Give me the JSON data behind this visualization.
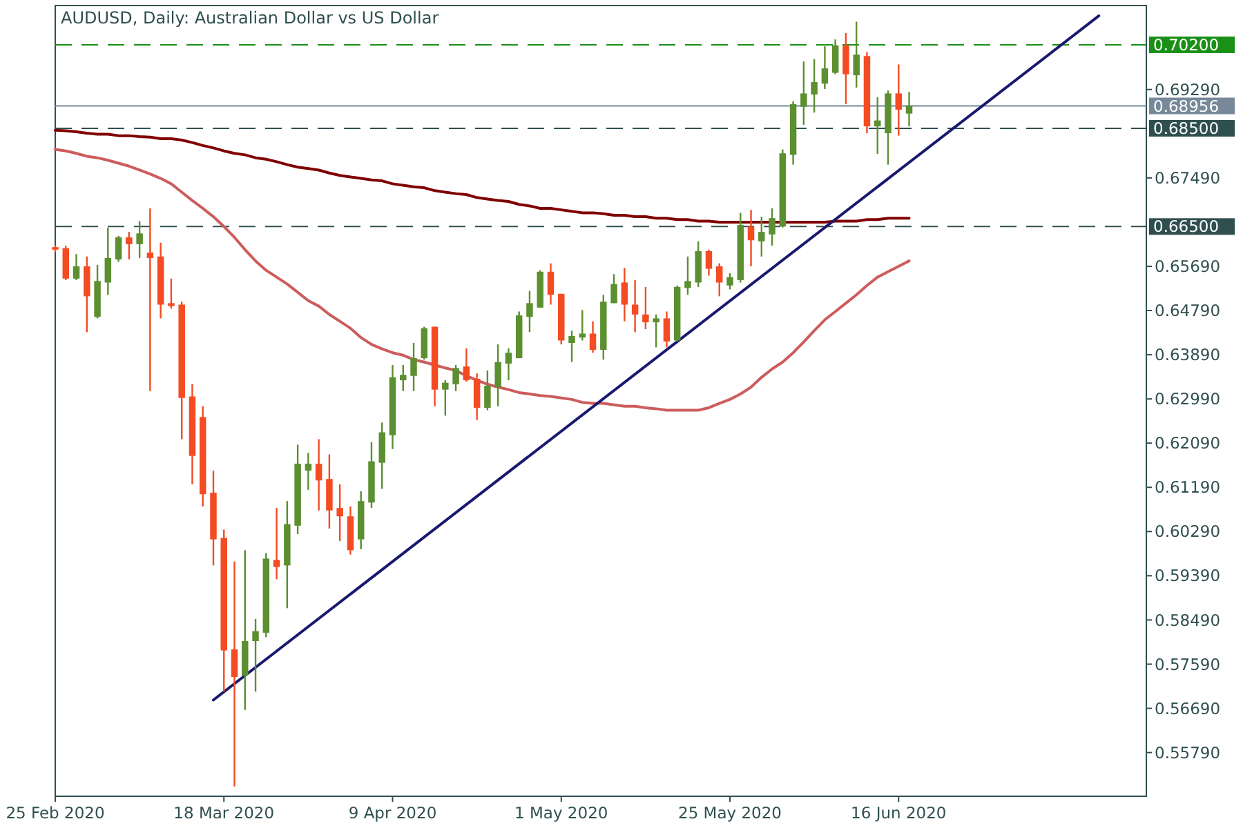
{
  "chart_data": {
    "type": "candlestick",
    "title": "AUDUSD, Daily:  Australian Dollar vs US Dollar",
    "categories": [
      "25 Feb 2020",
      null,
      null,
      null,
      null,
      null,
      null,
      null,
      null,
      null,
      null,
      null,
      null,
      null,
      null,
      null,
      "18 Mar 2020",
      null,
      null,
      null,
      null,
      null,
      null,
      null,
      null,
      null,
      null,
      null,
      null,
      null,
      null,
      null,
      "9 Apr 2020",
      null,
      null,
      null,
      null,
      null,
      null,
      null,
      null,
      null,
      null,
      null,
      null,
      null,
      null,
      null,
      "1 May 2020",
      null,
      null,
      null,
      null,
      null,
      null,
      null,
      null,
      null,
      null,
      null,
      null,
      null,
      null,
      null,
      "25 May 2020",
      null,
      null,
      null,
      null,
      null,
      null,
      null,
      null,
      null,
      null,
      null,
      null,
      null,
      null,
      null,
      "16 Jun 2020",
      null,
      null,
      null,
      null,
      null,
      null,
      null,
      null,
      null,
      null,
      null,
      null,
      null,
      null,
      null,
      null,
      null,
      null,
      null,
      null,
      null,
      null,
      null
    ],
    "ohlc": [
      [
        0.6608,
        0.6612,
        0.6598,
        0.6603
      ],
      [
        0.6606,
        0.6611,
        0.6541,
        0.6544
      ],
      [
        0.6544,
        0.6594,
        0.6541,
        0.6569
      ],
      [
        0.6569,
        0.6589,
        0.6435,
        0.6508
      ],
      [
        0.6466,
        0.6572,
        0.6463,
        0.6539
      ],
      [
        0.6536,
        0.6648,
        0.6511,
        0.6586
      ],
      [
        0.6583,
        0.6631,
        0.6578,
        0.6628
      ],
      [
        0.6628,
        0.6639,
        0.6583,
        0.6614
      ],
      [
        0.6614,
        0.6661,
        0.6586,
        0.6636
      ],
      [
        0.6597,
        0.6687,
        0.6315,
        0.6586
      ],
      [
        0.6589,
        0.6617,
        0.6463,
        0.6491
      ],
      [
        0.6494,
        0.6544,
        0.6483,
        0.6488
      ],
      [
        0.6491,
        0.6497,
        0.6217,
        0.6301
      ],
      [
        0.6304,
        0.6329,
        0.6125,
        0.6183
      ],
      [
        0.6262,
        0.6284,
        0.608,
        0.6105
      ],
      [
        0.6108,
        0.6153,
        0.596,
        0.6013
      ],
      [
        0.6016,
        0.6033,
        0.5703,
        0.5787
      ],
      [
        0.5789,
        0.5968,
        0.551,
        0.5733
      ],
      [
        0.5736,
        0.5991,
        0.5666,
        0.5806
      ],
      [
        0.5806,
        0.5851,
        0.5703,
        0.5826
      ],
      [
        0.5823,
        0.5985,
        0.5814,
        0.5974
      ],
      [
        0.5971,
        0.6077,
        0.5932,
        0.5957
      ],
      [
        0.596,
        0.6091,
        0.5873,
        0.6044
      ],
      [
        0.6041,
        0.6206,
        0.6024,
        0.6167
      ],
      [
        0.6153,
        0.6189,
        0.6114,
        0.6167
      ],
      [
        0.6167,
        0.6217,
        0.6072,
        0.6133
      ],
      [
        0.6136,
        0.6186,
        0.6035,
        0.6072
      ],
      [
        0.6077,
        0.6125,
        0.601,
        0.606
      ],
      [
        0.606,
        0.608,
        0.5982,
        0.5991
      ],
      [
        0.6013,
        0.6111,
        0.5993,
        0.6091
      ],
      [
        0.6088,
        0.6211,
        0.6077,
        0.6172
      ],
      [
        0.6169,
        0.6251,
        0.6116,
        0.6231
      ],
      [
        0.6225,
        0.6368,
        0.6197,
        0.6343
      ],
      [
        0.6337,
        0.6368,
        0.6315,
        0.6348
      ],
      [
        0.6346,
        0.6413,
        0.6315,
        0.6382
      ],
      [
        0.6382,
        0.6446,
        0.6379,
        0.6443
      ],
      [
        0.6446,
        0.6446,
        0.6284,
        0.6318
      ],
      [
        0.6318,
        0.6337,
        0.6265,
        0.6332
      ],
      [
        0.6329,
        0.6368,
        0.6315,
        0.6362
      ],
      [
        0.6365,
        0.6402,
        0.6334,
        0.6337
      ],
      [
        0.634,
        0.6351,
        0.6256,
        0.6281
      ],
      [
        0.6281,
        0.6357,
        0.6276,
        0.6326
      ],
      [
        0.6323,
        0.641,
        0.6284,
        0.6374
      ],
      [
        0.6371,
        0.6402,
        0.6337,
        0.6393
      ],
      [
        0.6382,
        0.6477,
        0.6382,
        0.6469
      ],
      [
        0.6466,
        0.6519,
        0.6435,
        0.6494
      ],
      [
        0.6485,
        0.6561,
        0.6485,
        0.6558
      ],
      [
        0.6558,
        0.6575,
        0.6491,
        0.6511
      ],
      [
        0.6513,
        0.6513,
        0.641,
        0.6418
      ],
      [
        0.6413,
        0.6438,
        0.6374,
        0.6427
      ],
      [
        0.6424,
        0.648,
        0.6418,
        0.6432
      ],
      [
        0.6432,
        0.6457,
        0.6393,
        0.6399
      ],
      [
        0.6399,
        0.6511,
        0.6379,
        0.6497
      ],
      [
        0.6494,
        0.6553,
        0.6494,
        0.6533
      ],
      [
        0.6536,
        0.6566,
        0.6457,
        0.6491
      ],
      [
        0.6491,
        0.6541,
        0.6435,
        0.6471
      ],
      [
        0.6471,
        0.6527,
        0.6441,
        0.6455
      ],
      [
        0.6455,
        0.6471,
        0.6404,
        0.6463
      ],
      [
        0.6463,
        0.6477,
        0.6404,
        0.6416
      ],
      [
        0.6418,
        0.653,
        0.6416,
        0.6527
      ],
      [
        0.6525,
        0.6589,
        0.6511,
        0.6539
      ],
      [
        0.6536,
        0.662,
        0.6527,
        0.66
      ],
      [
        0.66,
        0.6603,
        0.655,
        0.6564
      ],
      [
        0.6569,
        0.6575,
        0.6508,
        0.6536
      ],
      [
        0.653,
        0.6555,
        0.6522,
        0.6547
      ],
      [
        0.6541,
        0.6678,
        0.6536,
        0.6653
      ],
      [
        0.665,
        0.6684,
        0.6569,
        0.6622
      ],
      [
        0.662,
        0.667,
        0.6589,
        0.6639
      ],
      [
        0.6634,
        0.6687,
        0.6611,
        0.6667
      ],
      [
        0.665,
        0.6807,
        0.6648,
        0.6799
      ],
      [
        0.6796,
        0.6905,
        0.6776,
        0.6899
      ],
      [
        0.6894,
        0.6986,
        0.6857,
        0.6921
      ],
      [
        0.6919,
        0.6991,
        0.6882,
        0.6944
      ],
      [
        0.6941,
        0.7017,
        0.693,
        0.6972
      ],
      [
        0.6963,
        0.7031,
        0.696,
        0.7019
      ],
      [
        0.7019,
        0.7044,
        0.6899,
        0.696
      ],
      [
        0.6958,
        0.7067,
        0.6933,
        0.7
      ],
      [
        0.6997,
        0.7005,
        0.684,
        0.6854
      ],
      [
        0.6854,
        0.6913,
        0.6798,
        0.6866
      ],
      [
        0.684,
        0.6927,
        0.6776,
        0.6921
      ],
      [
        0.6921,
        0.698,
        0.6835,
        0.6888
      ],
      [
        0.688,
        0.6924,
        0.6854,
        0.6896
      ],
      null,
      null,
      null,
      null,
      null,
      null,
      null,
      null,
      null,
      null,
      null,
      null,
      null,
      null,
      null,
      null,
      null,
      null,
      null,
      null,
      null,
      null
    ],
    "series": [
      {
        "type": "line",
        "color": "#800000",
        "values": [
          0.6846,
          0.6845,
          0.6843,
          0.684,
          0.6838,
          0.6838,
          0.6835,
          0.6835,
          0.6833,
          0.6832,
          0.6829,
          0.6829,
          0.6826,
          0.6821,
          0.6815,
          0.681,
          0.6804,
          0.6799,
          0.6796,
          0.679,
          0.6787,
          0.6782,
          0.6776,
          0.6771,
          0.6768,
          0.6765,
          0.6759,
          0.6754,
          0.6751,
          0.6748,
          0.6745,
          0.6743,
          0.6737,
          0.6734,
          0.6731,
          0.6729,
          0.6723,
          0.672,
          0.6717,
          0.6715,
          0.6709,
          0.6706,
          0.6703,
          0.6701,
          0.6695,
          0.6692,
          0.6687,
          0.6687,
          0.6684,
          0.6681,
          0.6678,
          0.6678,
          0.6676,
          0.6673,
          0.6673,
          0.667,
          0.667,
          0.6667,
          0.6667,
          0.6664,
          0.6664,
          0.6661,
          0.6661,
          0.6659,
          0.6659,
          0.6659,
          0.6659,
          0.6659,
          0.6659,
          0.6659,
          0.6659,
          0.6659,
          0.6659,
          0.6659,
          0.6661,
          0.6661,
          0.6661,
          0.6664,
          0.6664,
          0.6667,
          0.6667,
          0.6667,
          null,
          null,
          null,
          null,
          null,
          null,
          null,
          null,
          null,
          null,
          null,
          null,
          null,
          null,
          null,
          null,
          null,
          null,
          null,
          null,
          null,
          null
        ]
      },
      {
        "type": "line",
        "color": "#cd5c5c",
        "values": [
          0.6807,
          0.6804,
          0.6799,
          0.6793,
          0.679,
          0.6785,
          0.6779,
          0.6773,
          0.6765,
          0.6757,
          0.6748,
          0.6737,
          0.672,
          0.6703,
          0.6687,
          0.667,
          0.665,
          0.6628,
          0.6603,
          0.658,
          0.6561,
          0.6547,
          0.6533,
          0.6516,
          0.6499,
          0.6488,
          0.6471,
          0.6457,
          0.6443,
          0.6424,
          0.641,
          0.6401,
          0.6393,
          0.6388,
          0.6379,
          0.6374,
          0.6368,
          0.6362,
          0.6357,
          0.6346,
          0.6337,
          0.6329,
          0.6323,
          0.6318,
          0.6312,
          0.6309,
          0.6306,
          0.6304,
          0.6301,
          0.6298,
          0.6292,
          0.629,
          0.629,
          0.6287,
          0.6284,
          0.6284,
          0.6281,
          0.6279,
          0.6276,
          0.6276,
          0.6276,
          0.6276,
          0.6281,
          0.629,
          0.6298,
          0.6309,
          0.6323,
          0.6343,
          0.636,
          0.6374,
          0.6393,
          0.6415,
          0.6438,
          0.646,
          0.6477,
          0.6494,
          0.6511,
          0.653,
          0.6547,
          0.6558,
          0.6569,
          0.658,
          null,
          null,
          null,
          null,
          null,
          null,
          null,
          null,
          null,
          null,
          null,
          null,
          null,
          null,
          null,
          null,
          null,
          null,
          null,
          null,
          null,
          null
        ]
      },
      {
        "type": "line",
        "color": "#191970",
        "values": [
          null,
          null,
          null,
          null,
          null,
          null,
          null,
          null,
          null,
          null,
          null,
          null,
          null,
          null,
          null,
          0.5686,
          null,
          null,
          null,
          null,
          null,
          null,
          null,
          null,
          null,
          null,
          null,
          null,
          null,
          null,
          null,
          null,
          null,
          null,
          null,
          null,
          null,
          null,
          null,
          null,
          null,
          null,
          null,
          null,
          null,
          null,
          null,
          null,
          null,
          null,
          null,
          null,
          null,
          null,
          null,
          null,
          null,
          null,
          null,
          null,
          null,
          null,
          null,
          null,
          null,
          null,
          null,
          null,
          null,
          null,
          null,
          null,
          null,
          null,
          null,
          null,
          null,
          null,
          null,
          null,
          null,
          null,
          null,
          null,
          null,
          null,
          null,
          null,
          null,
          null,
          null,
          null,
          null,
          null,
          null,
          null,
          null,
          null,
          null,
          0.7079,
          null,
          null,
          null,
          null
        ]
      }
    ],
    "ylim": [
      0.549,
      0.71
    ],
    "yticks": [
      {
        "value": 0.5579,
        "label": "0.55790"
      },
      {
        "value": 0.5669,
        "label": "0.56690"
      },
      {
        "value": 0.5759,
        "label": "0.57590"
      },
      {
        "value": 0.5849,
        "label": "0.58490"
      },
      {
        "value": 0.5939,
        "label": "0.59390"
      },
      {
        "value": 0.6029,
        "label": "0.60290"
      },
      {
        "value": 0.6119,
        "label": "0.61190"
      },
      {
        "value": 0.6209,
        "label": "0.62090"
      },
      {
        "value": 0.6299,
        "label": "0.62990"
      },
      {
        "value": 0.6389,
        "label": "0.63890"
      },
      {
        "value": 0.6479,
        "label": "0.64790"
      },
      {
        "value": 0.6569,
        "label": "0.65690"
      },
      {
        "value": 0.6749,
        "label": "0.67490"
      },
      {
        "value": 0.6929,
        "label": "0.69290"
      }
    ],
    "ref_lines": [
      {
        "axis": "y",
        "value": 0.702,
        "label": "0.70200",
        "color": "#1a9016",
        "line_style": "dashed"
      },
      {
        "axis": "y",
        "value": 0.68956,
        "label": "0.68956",
        "color": "#778899",
        "line_style": "solid"
      },
      {
        "axis": "y",
        "value": 0.685,
        "label": "0.68500",
        "color": "#2f4f4f",
        "line_style": "dashed"
      },
      {
        "axis": "y",
        "value": 0.665,
        "label": "0.66500",
        "color": "#2f4f4f",
        "line_style": "dashed"
      }
    ]
  }
}
